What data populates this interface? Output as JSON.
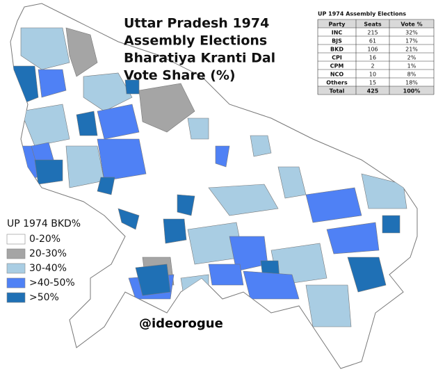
{
  "title": [
    "Uttar Pradesh 1974",
    "Assembly Elections",
    "Bharatiya Kranti Dal",
    "Vote Share (%)"
  ],
  "table": {
    "title": "UP 1974 Assembly Elections",
    "header": [
      "Party",
      "Seats",
      "Vote %"
    ],
    "rows": [
      [
        "INC",
        "215",
        "32%"
      ],
      [
        "BJS",
        "61",
        "17%"
      ],
      [
        "BKD",
        "106",
        "21%"
      ],
      [
        "CPI",
        "16",
        "2%"
      ],
      [
        "CPM",
        "2",
        "1%"
      ],
      [
        "NCO",
        "10",
        "8%"
      ],
      [
        "Others",
        "15",
        "18%"
      ],
      [
        "Total",
        "425",
        "100%"
      ]
    ]
  },
  "legend": {
    "title": "UP 1974 BKD%",
    "items": [
      {
        "label": "0-20%",
        "color": "#ffffff"
      },
      {
        "label": "20-30%",
        "color": "#a5a5a5"
      },
      {
        "label": "30-40%",
        "color": "#a9cde3"
      },
      {
        "label": ">40-50%",
        "color": "#4f81f5"
      },
      {
        "label": ">50%",
        "color": "#1f70b5"
      }
    ]
  },
  "credit": "@ideorogue"
}
